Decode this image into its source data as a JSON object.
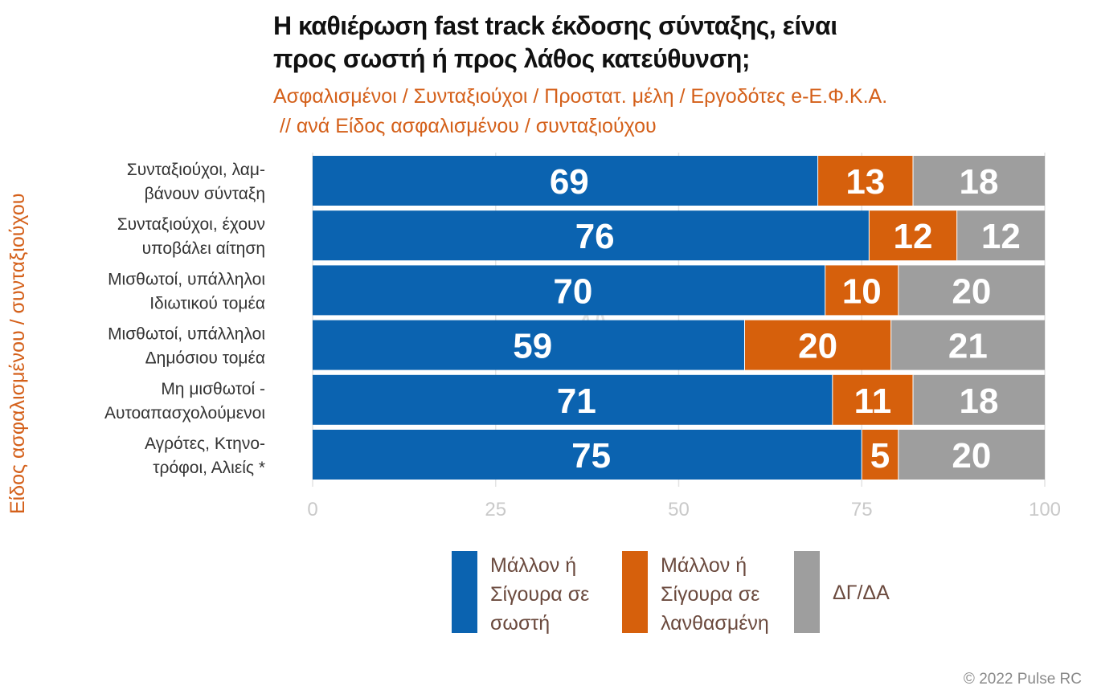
{
  "chart_data": {
    "type": "bar",
    "orientation": "horizontal",
    "stacked": true,
    "title_lines": [
      "Η καθιέρωση fast track έκδοσης σύνταξης, είναι",
      "προς σωστή ή προς λάθος κατεύθυνση;"
    ],
    "subtitle_lines": [
      "Ασφαλισμένοι / Συνταξιούχοι / Προστατ. μέλη / Εργοδότες e-Ε.Φ.Κ.Α.",
      "// ανά Είδος ασφαλισμένου / συνταξιούχου"
    ],
    "ylabel": "Είδος ασφαλισμένου / συνταξιούχου",
    "categories": [
      [
        "Συνταξιούχοι, λαμ-",
        "βάνουν σύνταξη"
      ],
      [
        "Συνταξιούχοι, έχουν",
        "υποβάλει αίτηση"
      ],
      [
        "Μισθωτοί, υπάλληλοι",
        "Ιδιωτικού τομέα"
      ],
      [
        "Μισθωτοί, υπάλληλοι",
        "Δημόσιου τομέα"
      ],
      [
        "Μη μισθωτοί -",
        "Αυτοαπασχολούμενοι"
      ],
      [
        "Αγρότες, Κτηνο-",
        "τρόφοι, Αλιείς *"
      ]
    ],
    "series": [
      {
        "name": "Μάλλον ή Σίγουρα σε σωστή",
        "color": "#0b63b0",
        "values": [
          69,
          76,
          70,
          59,
          71,
          75
        ]
      },
      {
        "name": "Μάλλον ή Σίγουρα σε λανθασμένη",
        "color": "#d6600c",
        "values": [
          13,
          12,
          10,
          20,
          11,
          5
        ]
      },
      {
        "name": "ΔΓ/ΔΑ",
        "color": "#9e9e9e",
        "values": [
          18,
          12,
          20,
          21,
          18,
          20
        ]
      }
    ],
    "xlim": [
      0,
      100
    ],
    "xticks": [
      "0",
      "25",
      "50",
      "75",
      "100"
    ],
    "grid": true,
    "legend_position": "bottom"
  },
  "legend": [
    {
      "lines": [
        "Μάλλον ή",
        "Σίγουρα σε",
        "σωστή"
      ],
      "color": "#0b63b0"
    },
    {
      "lines": [
        "Μάλλον ή",
        "Σίγουρα σε",
        "λανθασμένη"
      ],
      "color": "#d6600c"
    },
    {
      "lines": [
        "ΔΓ/ΔΑ"
      ],
      "color": "#9e9e9e"
    }
  ],
  "copyright": "© 2022 Pulse RC"
}
